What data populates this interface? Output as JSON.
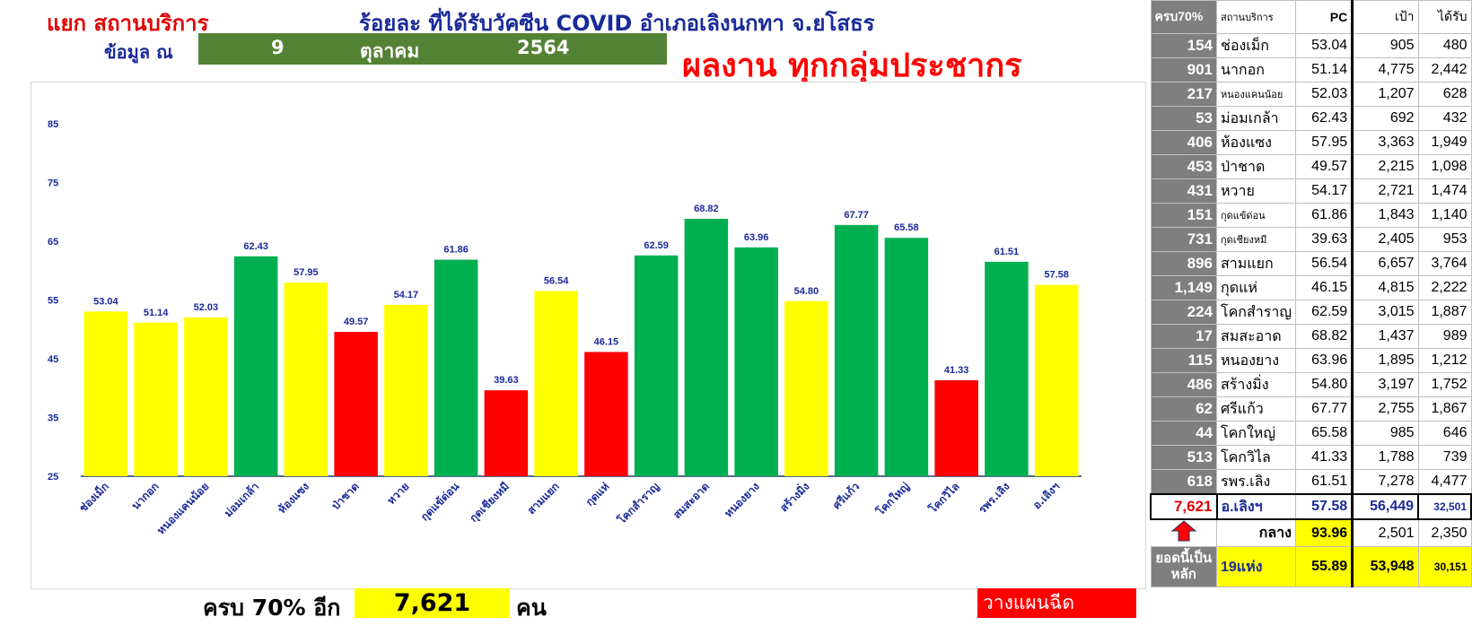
{
  "header": {
    "title_left": "แยก สถานบริการ",
    "title_center": "ร้อยละ ที่ได้รับวัคซีน COVID อำเภอเลิงนกทา จ.ยโสธร",
    "data_as_of_label": "ข้อมูล ณ",
    "day": "9",
    "month": "ตุลาคม",
    "year": "2564",
    "subtitle": "ผลงาน ทุกกลุ่มประชากร"
  },
  "footer": {
    "label": "ครบ 70% อีก",
    "value": "7,621",
    "unit": "คน",
    "plan_label": "วางแผนฉีด"
  },
  "colors": {
    "green": "#00b050",
    "yellow": "#ffff00",
    "red": "#ff0000",
    "axis_text": "#1a2a9a"
  },
  "chart_data": {
    "type": "bar",
    "title": "",
    "xlabel": "",
    "ylabel": "",
    "ylim": [
      25,
      85
    ],
    "yticks": [
      25,
      35,
      45,
      55,
      65,
      75,
      85
    ],
    "grid": false,
    "legend": "none",
    "categories": [
      "ช่องเม็ก",
      "นากอก",
      "หนองแคนน้อย",
      "ม่อมเกล้า",
      "ห้องแซง",
      "ป่าชาด",
      "หวาย",
      "กุดแข้ด่อน",
      "กุดเชียงหมี",
      "สามแยก",
      "กุดแห่",
      "โคกสำราญ",
      "สมสะอาด",
      "หนองยาง",
      "สร้างมิ่ง",
      "ศรีแก้ว",
      "โคกใหญ่",
      "โคกวิไล",
      "รพร.เลิง",
      "อ.เลิงฯ"
    ],
    "values": [
      53.04,
      51.14,
      52.03,
      62.43,
      57.95,
      49.57,
      54.17,
      61.86,
      39.63,
      56.54,
      46.15,
      62.59,
      68.82,
      63.96,
      54.8,
      67.77,
      65.58,
      41.33,
      61.51,
      57.58
    ],
    "value_labels": [
      "53.04",
      "51.14",
      "52.03",
      "62.43",
      "57.95",
      "49.57",
      "54.17",
      "61.86",
      "39.63",
      "56.54",
      "46.15",
      "62.59",
      "68.82",
      "63.96",
      "54.80",
      "67.77",
      "65.58",
      "41.33",
      "61.51",
      "57.58"
    ],
    "bar_colors": [
      "yellow",
      "yellow",
      "yellow",
      "green",
      "yellow",
      "red",
      "yellow",
      "green",
      "red",
      "yellow",
      "red",
      "green",
      "green",
      "green",
      "yellow",
      "green",
      "green",
      "red",
      "green",
      "yellow"
    ]
  },
  "table": {
    "headers": [
      "ครบ70%",
      "สถานบริการ",
      "PC",
      "เป้า",
      "ได้รับ"
    ],
    "rows": [
      {
        "remain": "154",
        "name": "ช่องเม็ก",
        "pc": "53.04",
        "target": "905",
        "received": "480"
      },
      {
        "remain": "901",
        "name": "นากอก",
        "pc": "51.14",
        "target": "4,775",
        "received": "2,442"
      },
      {
        "remain": "217",
        "name": "หนองแคนน้อย",
        "pc": "52.03",
        "target": "1,207",
        "received": "628"
      },
      {
        "remain": "53",
        "name": "ม่อมเกล้า",
        "pc": "62.43",
        "target": "692",
        "received": "432"
      },
      {
        "remain": "406",
        "name": "ห้องแซง",
        "pc": "57.95",
        "target": "3,363",
        "received": "1,949"
      },
      {
        "remain": "453",
        "name": "ป่าชาด",
        "pc": "49.57",
        "target": "2,215",
        "received": "1,098"
      },
      {
        "remain": "431",
        "name": "หวาย",
        "pc": "54.17",
        "target": "2,721",
        "received": "1,474"
      },
      {
        "remain": "151",
        "name": "กุดแข้ด่อน",
        "pc": "61.86",
        "target": "1,843",
        "received": "1,140"
      },
      {
        "remain": "731",
        "name": "กุดเชียงหมี",
        "pc": "39.63",
        "target": "2,405",
        "received": "953"
      },
      {
        "remain": "896",
        "name": "สามแยก",
        "pc": "56.54",
        "target": "6,657",
        "received": "3,764"
      },
      {
        "remain": "1,149",
        "name": "กุดแห่",
        "pc": "46.15",
        "target": "4,815",
        "received": "2,222"
      },
      {
        "remain": "224",
        "name": "โคกสำราญ",
        "pc": "62.59",
        "target": "3,015",
        "received": "1,887"
      },
      {
        "remain": "17",
        "name": "สมสะอาด",
        "pc": "68.82",
        "target": "1,437",
        "received": "989"
      },
      {
        "remain": "115",
        "name": "หนองยาง",
        "pc": "63.96",
        "target": "1,895",
        "received": "1,212"
      },
      {
        "remain": "486",
        "name": "สร้างมิ่ง",
        "pc": "54.80",
        "target": "3,197",
        "received": "1,752"
      },
      {
        "remain": "62",
        "name": "ศรีแก้ว",
        "pc": "67.77",
        "target": "2,755",
        "received": "1,867"
      },
      {
        "remain": "44",
        "name": "โคกใหญ่",
        "pc": "65.58",
        "target": "985",
        "received": "646"
      },
      {
        "remain": "513",
        "name": "โคกวิไล",
        "pc": "41.33",
        "target": "1,788",
        "received": "739"
      },
      {
        "remain": "618",
        "name": "รพร.เลิง",
        "pc": "61.51",
        "target": "7,278",
        "received": "4,477"
      }
    ],
    "total": {
      "remain": "7,621",
      "name": "อ.เลิงฯ",
      "pc": "57.58",
      "target": "56,449",
      "received": "32,501"
    },
    "middle": {
      "name": "กลาง",
      "pc": "93.96",
      "target": "2,501",
      "received": "2,350"
    },
    "main": {
      "note": "ยอดนี้เป็นหลัก",
      "name": "19แห่ง",
      "pc": "55.89",
      "target": "53,948",
      "received": "30,151"
    },
    "arrow_icon": "up-arrow-icon"
  }
}
